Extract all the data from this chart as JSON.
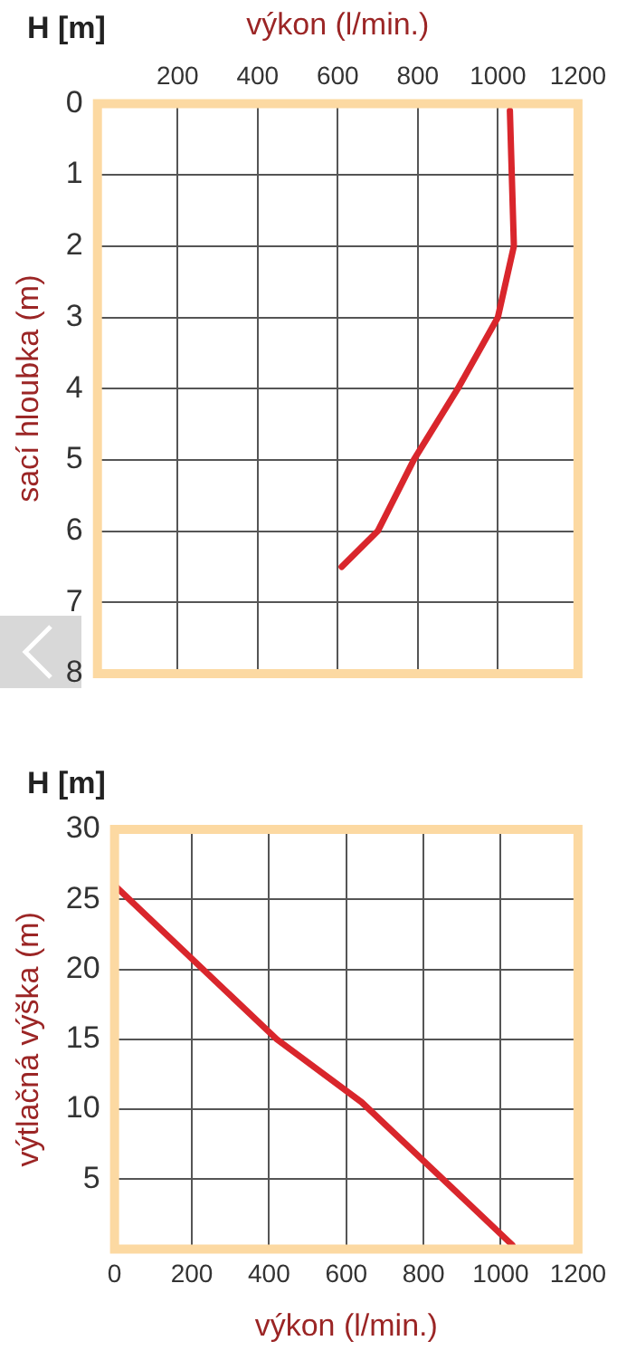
{
  "chart_data": [
    {
      "type": "line",
      "xlabel": "výkon (l/min.)",
      "ylabel": "sací hloubka (m)",
      "annotations": [
        "H [m]"
      ],
      "xlim": [
        0,
        1200
      ],
      "xticks": [
        200,
        400,
        600,
        800,
        1000,
        1200
      ],
      "ylim": [
        8,
        0
      ],
      "yticks": [
        0,
        1,
        2,
        3,
        4,
        5,
        6,
        7,
        8
      ],
      "grid": true,
      "legend": false,
      "marker": "none",
      "line_style": "solid",
      "series": [
        {
          "color": "#d9262c",
          "x": [
            1030,
            1040,
            1000,
            900,
            790,
            700,
            610
          ],
          "values": [
            0.1,
            2,
            3,
            4,
            5,
            6,
            6.5
          ]
        }
      ]
    },
    {
      "type": "line",
      "xlabel": "výkon (l/min.)",
      "ylabel": "výtlačná výška (m)",
      "annotations": [
        "H [m]"
      ],
      "xlim": [
        0,
        1200
      ],
      "xticks": [
        0,
        200,
        400,
        600,
        800,
        1000,
        1200
      ],
      "ylim": [
        0,
        30
      ],
      "yticks": [
        5,
        10,
        15,
        20,
        25,
        30
      ],
      "grid": true,
      "legend": false,
      "marker": "none",
      "line_style": "solid",
      "series": [
        {
          "color": "#d9262c",
          "x": [
            0,
            420,
            640,
            1030
          ],
          "values": [
            26,
            15,
            10.5,
            0.3
          ]
        }
      ]
    }
  ]
}
